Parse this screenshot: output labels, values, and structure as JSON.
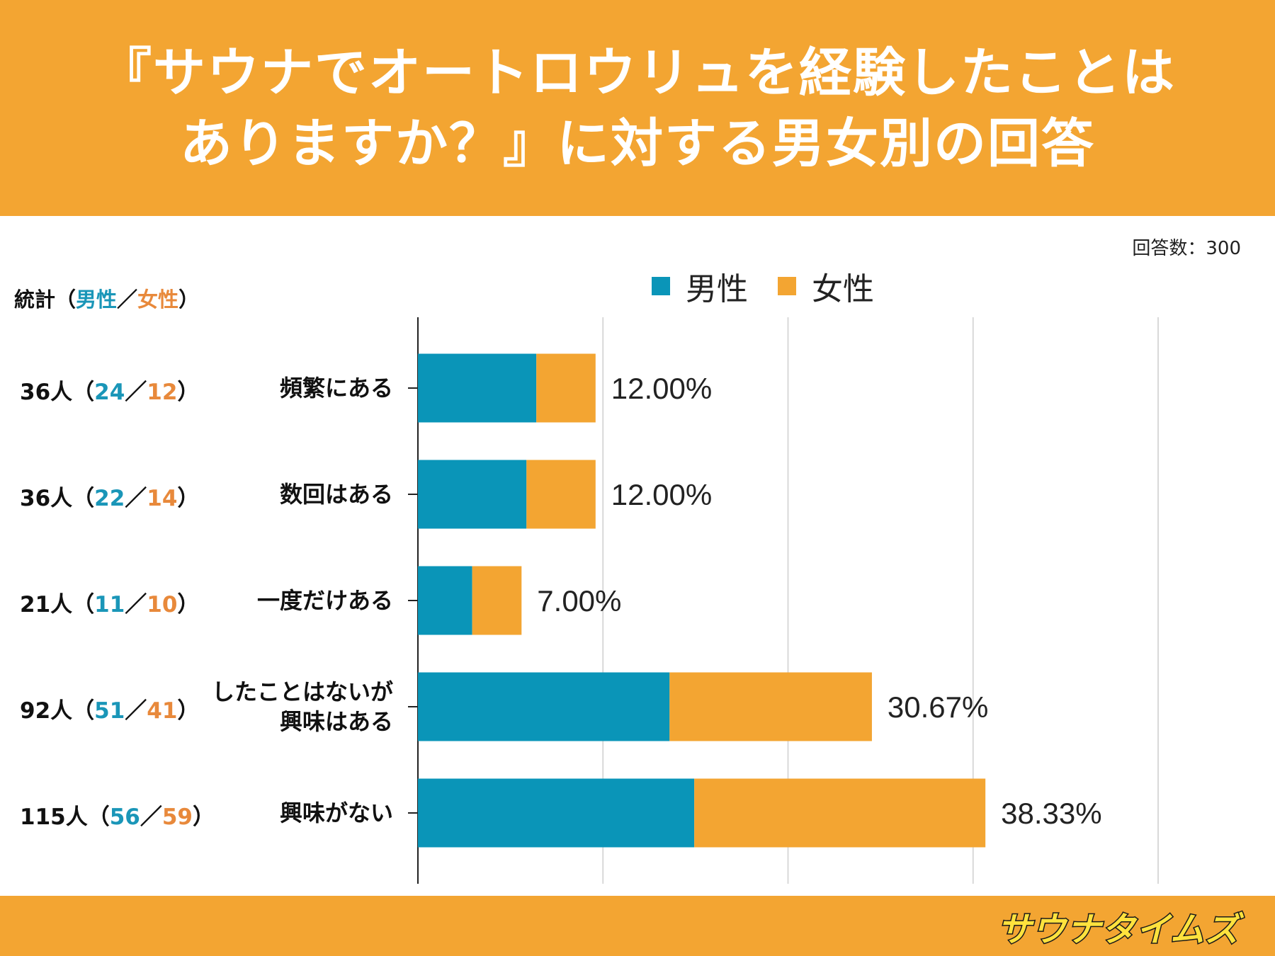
{
  "header": {
    "title_line1": "『サウナでオートロウリュを経験したことは",
    "title_line2": "ありますか？』に対する男女別の回答"
  },
  "respondents_label": "回答数：300",
  "stats_header": {
    "prefix": "統計（",
    "male": "男性",
    "slash": "／",
    "female": "女性",
    "suffix": "）"
  },
  "legend": {
    "male": "男性",
    "female": "女性"
  },
  "colors": {
    "header_bg": "#f3a532",
    "male": "#0a95b8",
    "female": "#f3a532",
    "grid": "#d9d9d9"
  },
  "chart_data": {
    "type": "bar",
    "orientation": "horizontal",
    "stacked": true,
    "title": "『サウナでオートロウリュを経験したことはありますか？』に対する男女別の回答",
    "categories": [
      "頻繁にある",
      "数回はある",
      "一度だけある",
      "したことはないが興味はある",
      "興味がない"
    ],
    "category_lines": [
      [
        "頻繁にある"
      ],
      [
        "数回はある"
      ],
      [
        "一度だけある"
      ],
      [
        "したことはないが",
        "興味はある"
      ],
      [
        "興味がない"
      ]
    ],
    "series": [
      {
        "name": "男性",
        "values": [
          24,
          22,
          11,
          51,
          56
        ]
      },
      {
        "name": "女性",
        "values": [
          12,
          14,
          10,
          41,
          59
        ]
      }
    ],
    "totals": [
      36,
      36,
      21,
      92,
      115
    ],
    "total_labels": [
      "36人",
      "36人",
      "21人",
      "92人",
      "115人"
    ],
    "male_labels": [
      "24",
      "22",
      "11",
      "51",
      "56"
    ],
    "female_labels": [
      "12",
      "14",
      "10",
      "41",
      "59"
    ],
    "percent_labels": [
      "12.00%",
      "12.00%",
      "7.00%",
      "30.67%",
      "38.33%"
    ],
    "xlim": [
      0,
      150
    ],
    "grid": true,
    "legend": "top"
  },
  "logo_text": "サウナタイムズ"
}
